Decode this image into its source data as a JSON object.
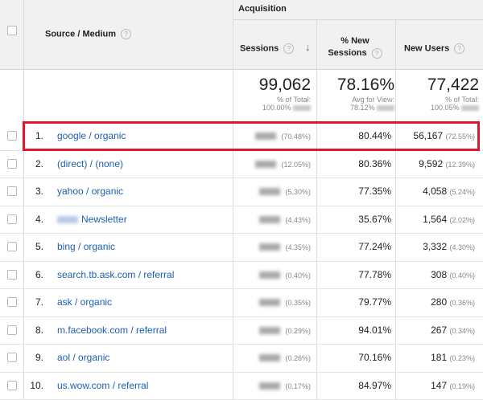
{
  "header": {
    "group_label": "Acquisition",
    "col_source": "Source / Medium",
    "col_sessions": "Sessions",
    "col_new_sessions_l1": "% New",
    "col_new_sessions_l2": "Sessions",
    "col_new_users": "New Users",
    "help_glyph": "?",
    "sort_glyph": "↓"
  },
  "totals": {
    "sessions": "99,062",
    "sessions_sub1": "% of Total:",
    "sessions_sub2": "100.00%",
    "new_sessions": "78.16%",
    "new_sessions_sub1": "Avg for View:",
    "new_sessions_sub2": "78.12%",
    "new_users": "77,422",
    "new_users_sub1": "% of Total:",
    "new_users_sub2": "100.05%"
  },
  "rows": [
    {
      "index": "1.",
      "source": "google / organic",
      "sessions_pct": "(70.48%)",
      "new_sessions": "80.44%",
      "new_users": "56,167",
      "new_users_pct": "(72.55%)"
    },
    {
      "index": "2.",
      "source": "(direct) / (none)",
      "sessions_pct": "(12.05%)",
      "new_sessions": "80.36%",
      "new_users": "9,592",
      "new_users_pct": "(12.39%)"
    },
    {
      "index": "3.",
      "source": "yahoo / organic",
      "sessions_pct": "(5.30%)",
      "new_sessions": "77.35%",
      "new_users": "4,058",
      "new_users_pct": "(5.24%)"
    },
    {
      "index": "4.",
      "source": "Newsletter",
      "sessions_pct": "(4.43%)",
      "new_sessions": "35.67%",
      "new_users": "1,564",
      "new_users_pct": "(2.02%)"
    },
    {
      "index": "5.",
      "source": "bing / organic",
      "sessions_pct": "(4.35%)",
      "new_sessions": "77.24%",
      "new_users": "3,332",
      "new_users_pct": "(4.30%)"
    },
    {
      "index": "6.",
      "source": "search.tb.ask.com / referral",
      "sessions_pct": "(0.40%)",
      "new_sessions": "77.78%",
      "new_users": "308",
      "new_users_pct": "(0.40%)"
    },
    {
      "index": "7.",
      "source": "ask / organic",
      "sessions_pct": "(0.35%)",
      "new_sessions": "79.77%",
      "new_users": "280",
      "new_users_pct": "(0.36%)"
    },
    {
      "index": "8.",
      "source": "m.facebook.com / referral",
      "sessions_pct": "(0.29%)",
      "new_sessions": "94.01%",
      "new_users": "267",
      "new_users_pct": "(0.34%)"
    },
    {
      "index": "9.",
      "source": "aol / organic",
      "sessions_pct": "(0.26%)",
      "new_sessions": "70.16%",
      "new_users": "181",
      "new_users_pct": "(0.23%)"
    },
    {
      "index": "10.",
      "source": "us.wow.com / referral",
      "sessions_pct": "(0.17%)",
      "new_sessions": "84.97%",
      "new_users": "147",
      "new_users_pct": "(0.19%)"
    }
  ],
  "colors": {
    "link": "#1a5fb4",
    "highlight": "#e0182d",
    "header_bg": "#f1f1f1"
  }
}
